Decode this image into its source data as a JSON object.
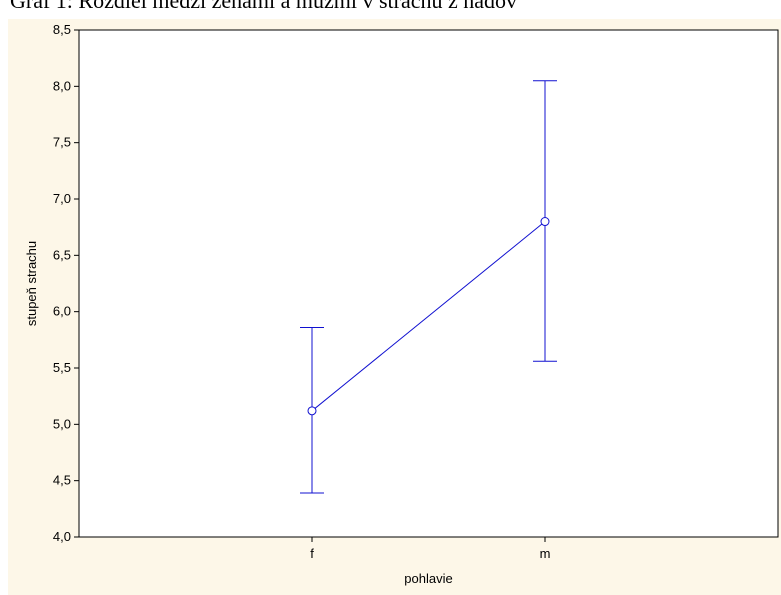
{
  "title": "Graf 1: Rozdiel medzi ženami a mužmi v strachu z nádov",
  "colors": {
    "panel_background": "#fdf7e8",
    "plot_background": "#ffffff",
    "series": "#1010d0",
    "axis": "#000000"
  },
  "chart_data": {
    "type": "line",
    "categories": [
      "f",
      "m"
    ],
    "series": [
      {
        "values": [
          5.12,
          6.8
        ],
        "error_low": [
          4.39,
          5.56
        ],
        "error_high": [
          5.86,
          8.05
        ]
      }
    ],
    "xlabel": "pohlavie",
    "ylabel": "stupeň strachu",
    "ylim": [
      4.0,
      8.5
    ],
    "yticks": [
      "4,0",
      "4,5",
      "5,0",
      "5,5",
      "6,0",
      "6,5",
      "7,0",
      "7,5",
      "8,0",
      "8,5"
    ],
    "grid": false,
    "marker": "open-circle",
    "error_bars": true
  }
}
